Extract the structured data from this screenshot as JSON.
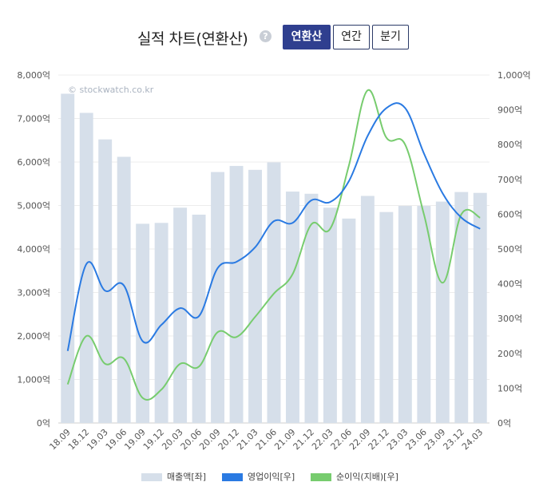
{
  "header": {
    "title": "실적 차트(연환산)",
    "help_icon": "?",
    "buttons": [
      "연환산",
      "연간",
      "분기"
    ],
    "active_button": 0
  },
  "watermark": "© stockwatch.co.kr",
  "chart_data": {
    "type": "bar",
    "categories": [
      "18.09",
      "18.12",
      "19.03",
      "19.06",
      "19.09",
      "19.12",
      "20.03",
      "20.06",
      "20.09",
      "20.12",
      "21.03",
      "21.06",
      "21.09",
      "21.12",
      "22.03",
      "22.06",
      "22.09",
      "22.12",
      "23.03",
      "23.06",
      "23.09",
      "23.12",
      "24.03"
    ],
    "series": [
      {
        "name": "매출액[좌]",
        "type": "bar",
        "axis": "left",
        "color": "#d6dfea",
        "values": [
          7570,
          7130,
          6520,
          6120,
          4580,
          4600,
          4950,
          4790,
          5770,
          5910,
          5820,
          5990,
          5320,
          5270,
          4950,
          4700,
          5220,
          4850,
          4990,
          4990,
          5090,
          5310,
          5290
        ]
      },
      {
        "name": "영업이익[우]",
        "type": "line",
        "axis": "right",
        "color": "#2a7ae2",
        "values": [
          207,
          457,
          380,
          395,
          235,
          282,
          330,
          307,
          445,
          463,
          505,
          580,
          575,
          640,
          635,
          695,
          825,
          905,
          905,
          775,
          660,
          590,
          558
        ]
      },
      {
        "name": "순이익(지배)[우]",
        "type": "line",
        "axis": "right",
        "color": "#77cc6e",
        "values": [
          111,
          250,
          170,
          185,
          72,
          96,
          170,
          162,
          261,
          247,
          305,
          372,
          428,
          571,
          558,
          740,
          956,
          820,
          800,
          600,
          403,
          600,
          590
        ]
      }
    ],
    "left_axis": {
      "min": 0,
      "max": 8000,
      "ticks": [
        "0억",
        "1,000억",
        "2,000억",
        "3,000억",
        "4,000억",
        "5,000억",
        "6,000억",
        "7,000억",
        "8,000억"
      ]
    },
    "right_axis": {
      "min": 0,
      "max": 1000,
      "ticks": [
        "0억",
        "100억",
        "200억",
        "300억",
        "400억",
        "500억",
        "600억",
        "700억",
        "800억",
        "900억",
        "1,000억"
      ]
    },
    "grid": true,
    "legend_position": "bottom"
  }
}
